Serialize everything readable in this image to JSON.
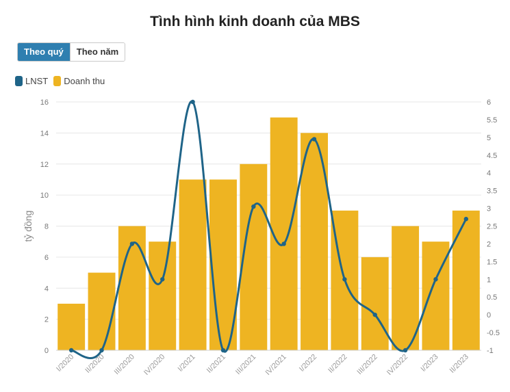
{
  "title": "Tình hình kinh doanh của MBS",
  "toggle": {
    "quarter_label": "Theo quý",
    "year_label": "Theo năm",
    "active": "quarter"
  },
  "legend": [
    {
      "name": "LNST",
      "color": "#1f6488"
    },
    {
      "name": "Doanh thu",
      "color": "#eeb422"
    }
  ],
  "chart_data": {
    "type": "bar",
    "title": "Tình hình kinh doanh của MBS",
    "ylabel": "tỷ đồng",
    "xlabel": "",
    "categories": [
      "I/2020",
      "II/2020",
      "III/2020",
      "IV/2020",
      "I/2021",
      "II/2021",
      "III/2021",
      "IV/2021",
      "I/2022",
      "II/2022",
      "III/2022",
      "IV/2022",
      "I/2023",
      "II/2023"
    ],
    "left_axis": {
      "ylim": [
        0,
        16
      ],
      "ticks": [
        "0",
        "2",
        "4",
        "6",
        "8",
        "10",
        "12",
        "14",
        "16"
      ]
    },
    "right_axis": {
      "ylim": [
        -1,
        6
      ],
      "ticks": [
        "-1",
        "-0.5",
        "0",
        "0.5",
        "1",
        "1.5",
        "2",
        "2.5",
        "3",
        "3.5",
        "4",
        "4.5",
        "5",
        "5.5",
        "6"
      ]
    },
    "series": [
      {
        "name": "Doanh thu",
        "type": "bar",
        "axis": "left",
        "color": "#eeb422",
        "values": [
          3,
          5,
          8,
          7,
          11,
          11,
          12,
          15,
          14,
          9,
          6,
          8,
          7,
          9
        ]
      },
      {
        "name": "LNST",
        "type": "line",
        "axis": "right",
        "color": "#1f6488",
        "values": [
          -1,
          -1,
          2,
          1,
          6,
          -1,
          3.05,
          2,
          4.95,
          1,
          0,
          -1,
          1,
          2.7
        ]
      }
    ],
    "grid": true
  }
}
